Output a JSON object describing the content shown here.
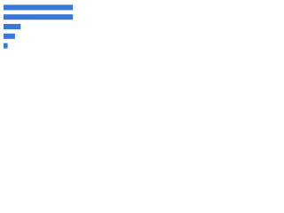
{
  "chart_data": {
    "type": "bar",
    "orientation": "horizontal",
    "categories": [
      null,
      null,
      null,
      null,
      null
    ],
    "values": [
      85,
      85,
      21,
      14,
      5
    ],
    "color": "#3a78d8",
    "xlim": [
      0,
      100
    ]
  }
}
